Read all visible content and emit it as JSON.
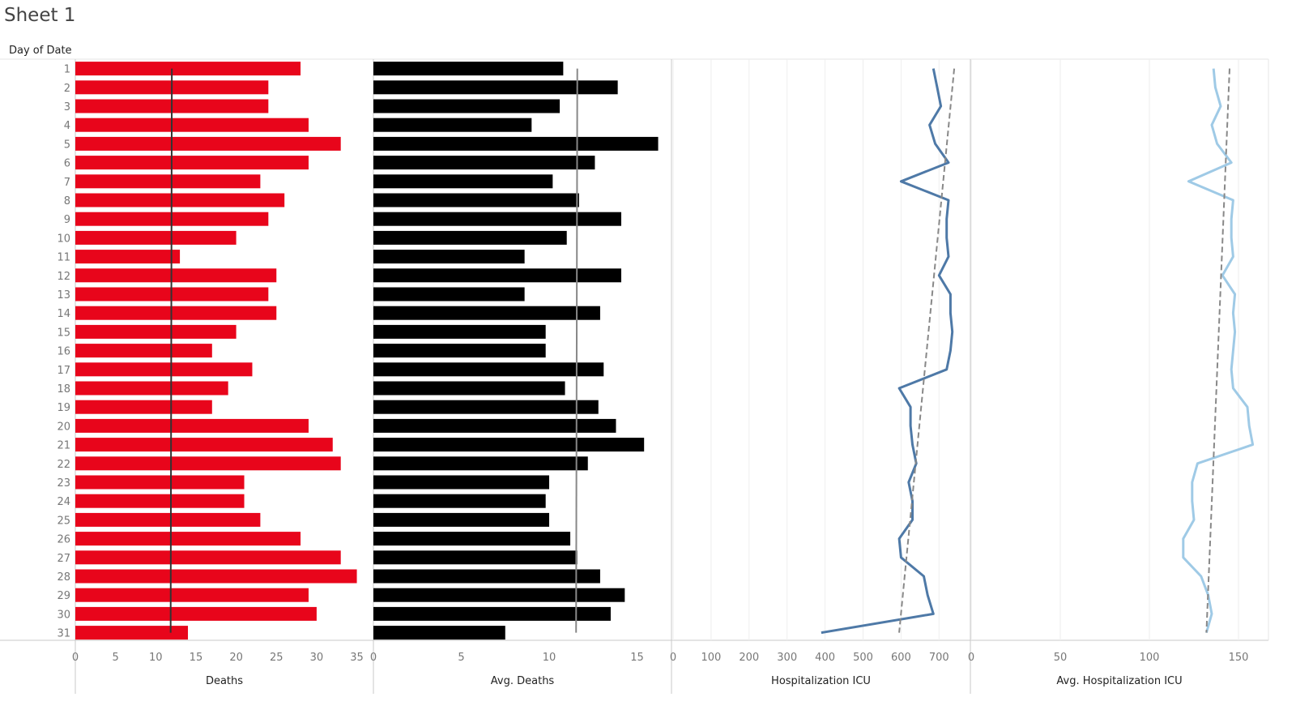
{
  "sheet": {
    "title": "Sheet 1",
    "row_header": "Day of Date"
  },
  "colors": {
    "deaths_bar": "#e8051b",
    "avg_deaths_bar": "#000000",
    "icu_line": "#4e79a7",
    "avg_icu_line": "#9fcae6",
    "trend": "#888888",
    "refline": "#333333"
  },
  "chart_data": {
    "type": "bar",
    "x_dimension": "Day of Date",
    "categories": [
      "1",
      "2",
      "3",
      "4",
      "5",
      "6",
      "7",
      "8",
      "9",
      "10",
      "11",
      "12",
      "13",
      "14",
      "15",
      "16",
      "17",
      "18",
      "19",
      "20",
      "21",
      "22",
      "23",
      "24",
      "25",
      "26",
      "27",
      "28",
      "29",
      "30",
      "31"
    ],
    "panels": [
      {
        "type": "bar",
        "measure": "Deaths",
        "xlabel": "Deaths",
        "ticks": [
          "0",
          "5",
          "10",
          "15",
          "20",
          "25",
          "30",
          "35"
        ],
        "xlim": [
          0,
          35
        ],
        "values": [
          28,
          24,
          24,
          29,
          33,
          29,
          23,
          26,
          24,
          20,
          13,
          25,
          24,
          25,
          20,
          17,
          22,
          19,
          17,
          29,
          32,
          33,
          21,
          21,
          23,
          28,
          33,
          35,
          29,
          30,
          14
        ],
        "reference_line": 12
      },
      {
        "type": "bar",
        "measure": "Avg. Deaths",
        "xlabel": "Avg. Deaths",
        "ticks": [
          "0",
          "5",
          "10",
          "15"
        ],
        "xlim": [
          0,
          16.5
        ],
        "values": [
          10.8,
          13.9,
          10.6,
          9.0,
          16.2,
          12.6,
          10.2,
          11.7,
          14.1,
          11.0,
          8.6,
          14.1,
          8.6,
          12.9,
          9.8,
          9.8,
          13.1,
          10.9,
          12.8,
          13.8,
          15.4,
          12.2,
          10.0,
          9.8,
          10.0,
          11.2,
          11.6,
          12.9,
          14.3,
          13.5,
          7.5
        ],
        "reference_line": 11.6
      },
      {
        "type": "line",
        "measure": "Hospitalization ICU",
        "xlabel": "Hospitalization ICU",
        "ticks": [
          "0",
          "100",
          "200",
          "300",
          "400",
          "500",
          "600",
          "700"
        ],
        "xlim": [
          0,
          780
        ],
        "values": [
          685,
          695,
          705,
          675,
          690,
          725,
          600,
          725,
          720,
          720,
          725,
          700,
          730,
          730,
          735,
          730,
          720,
          595,
          625,
          625,
          630,
          640,
          620,
          630,
          630,
          595,
          600,
          660,
          670,
          685,
          390
        ],
        "trend": [
          740,
          595
        ]
      },
      {
        "type": "line",
        "measure": "Avg. Hospitalization ICU",
        "xlabel": "Avg. Hospitalization ICU",
        "ticks": [
          "0",
          "50",
          "100",
          "150"
        ],
        "xlim": [
          0,
          161
        ],
        "values": [
          136,
          137,
          140,
          135,
          138,
          146,
          122,
          147,
          146,
          146,
          147,
          141,
          148,
          147,
          148,
          147,
          146,
          147,
          155,
          156,
          158,
          127,
          124,
          124,
          125,
          119,
          119,
          129,
          133,
          135,
          132
        ],
        "trend": [
          145,
          132
        ]
      }
    ]
  }
}
